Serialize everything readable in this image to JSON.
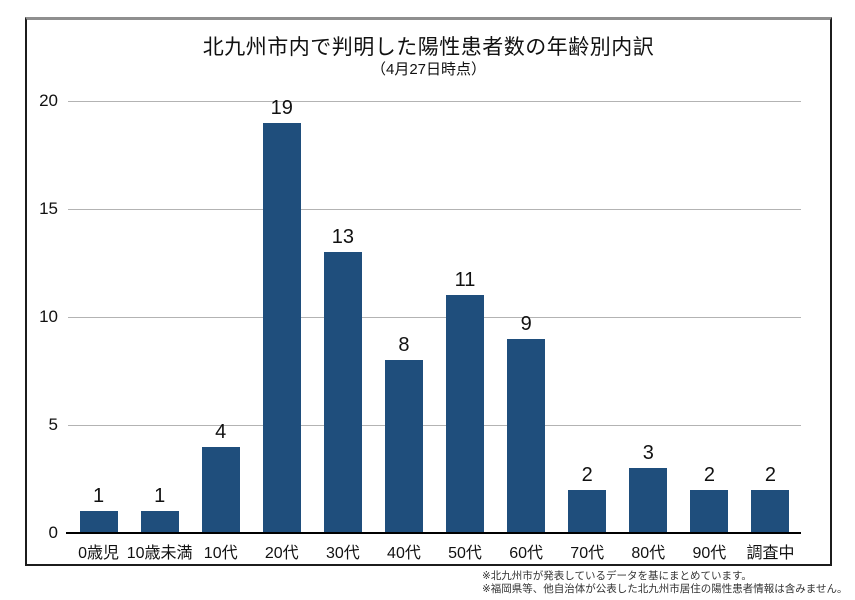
{
  "footnotes": {
    "line1": "※北九州市が発表しているデータを基にまとめています。",
    "line2": "※福岡県等、他自治体が公表した北九州市居住の陽性患者情報は含みません。"
  },
  "chart_data": {
    "type": "bar",
    "title": "北九州市内で判明した陽性患者数の年齢別内訳",
    "subtitle": "（4月27日時点）",
    "categories": [
      "0歳児",
      "10歳未満",
      "10代",
      "20代",
      "30代",
      "40代",
      "50代",
      "60代",
      "70代",
      "80代",
      "90代",
      "調査中"
    ],
    "values": [
      1,
      1,
      4,
      19,
      13,
      8,
      11,
      9,
      2,
      3,
      2,
      2
    ],
    "xlabel": "",
    "ylabel": "",
    "ylim": [
      0,
      20
    ],
    "yticks": [
      0,
      5,
      10,
      15,
      20
    ],
    "grid": true,
    "gridlines_behind_bars": true,
    "legend": "none",
    "value_labels": true,
    "colors": {
      "bar": "#1f4e7c",
      "gridline": "#b3b3b3",
      "axis": "#000000",
      "text": "#111111"
    }
  }
}
